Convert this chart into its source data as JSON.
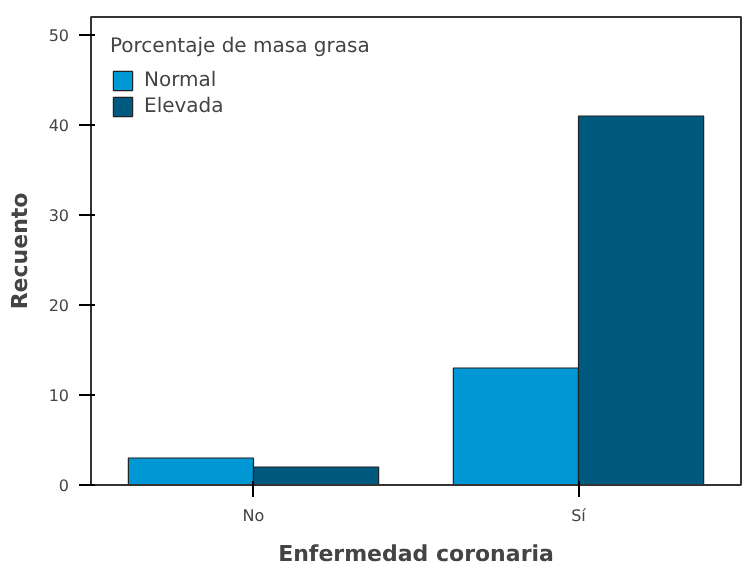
{
  "chart_data": {
    "type": "bar",
    "xlabel": "Enfermedad coronaria",
    "ylabel": "Recuento",
    "legend_title": "Porcentaje de masa grasa",
    "categories": [
      "No",
      "Sí"
    ],
    "series": [
      {
        "name": "Normal",
        "color": "#0098d4",
        "values": [
          3,
          13
        ]
      },
      {
        "name": "Elevada",
        "color": "#005a80",
        "values": [
          2,
          41
        ]
      }
    ],
    "ylim": [
      0,
      52
    ],
    "yticks": [
      0,
      10,
      20,
      30,
      40,
      50
    ],
    "grid": false,
    "legend": "top left"
  }
}
